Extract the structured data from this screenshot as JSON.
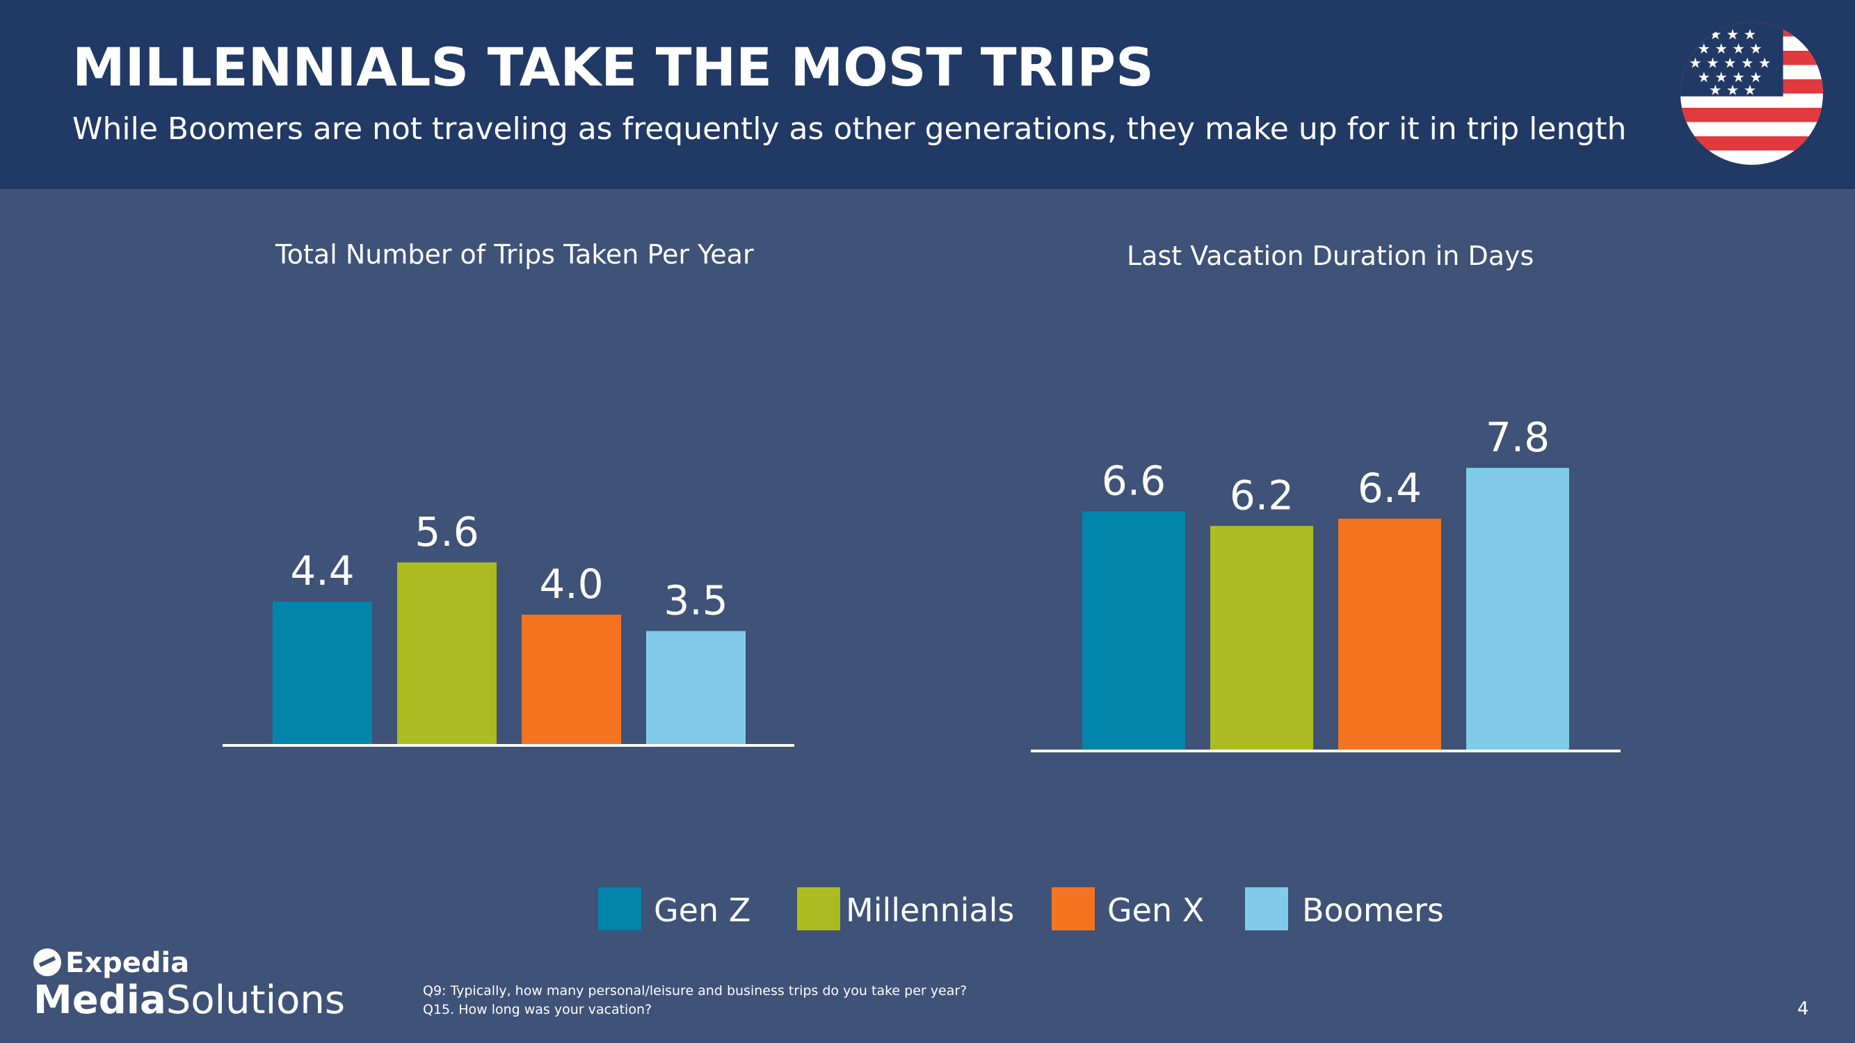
{
  "header": {
    "title": "MILLENNIALS TAKE THE MOST TRIPS",
    "subtitle": "While Boomers are not traveling as frequently as other generations, they make up for it in trip length"
  },
  "flag_icon": "us-flag-icon",
  "colors": {
    "background": "#3f5277",
    "header": "#213965",
    "gen_z": "#0085ad",
    "millennials": "#adbb22",
    "gen_x": "#f47321",
    "boomers": "#80cbea"
  },
  "chart_data": [
    {
      "type": "bar",
      "title": "Total Number of Trips Taken Per Year",
      "categories": [
        "Gen Z",
        "Millennials",
        "Gen X",
        "Boomers"
      ],
      "values": [
        4.4,
        5.6,
        4.0,
        3.5
      ],
      "data_labels": [
        "4.4",
        "5.6",
        "4.0",
        "3.5"
      ],
      "xlabel": "",
      "ylabel": "",
      "ylim": [
        0,
        12
      ],
      "grid": false
    },
    {
      "type": "bar",
      "title": "Last Vacation Duration in Days",
      "categories": [
        "Gen Z",
        "Millennials",
        "Gen X",
        "Boomers"
      ],
      "values": [
        6.6,
        6.2,
        6.4,
        7.8
      ],
      "data_labels": [
        "6.6",
        "6.2",
        "6.4",
        "7.8"
      ],
      "xlabel": "",
      "ylabel": "",
      "ylim": [
        0,
        12
      ],
      "grid": false
    }
  ],
  "legend": {
    "placement": "bottom",
    "items": [
      {
        "label": "Gen Z",
        "color": "#0085ad"
      },
      {
        "label": "Millennials",
        "color": "#adbb22"
      },
      {
        "label": "Gen X",
        "color": "#f47321"
      },
      {
        "label": "Boomers",
        "color": "#80cbea"
      }
    ]
  },
  "logo": {
    "top": "Expedia",
    "bottom_bold": "Media",
    "bottom_regular": "Solutions"
  },
  "footnote": {
    "line1": "Q9: Typically, how many personal/leisure and business trips do you take per year?",
    "line2": "Q15. How long was your vacation?"
  },
  "page_number": "4"
}
